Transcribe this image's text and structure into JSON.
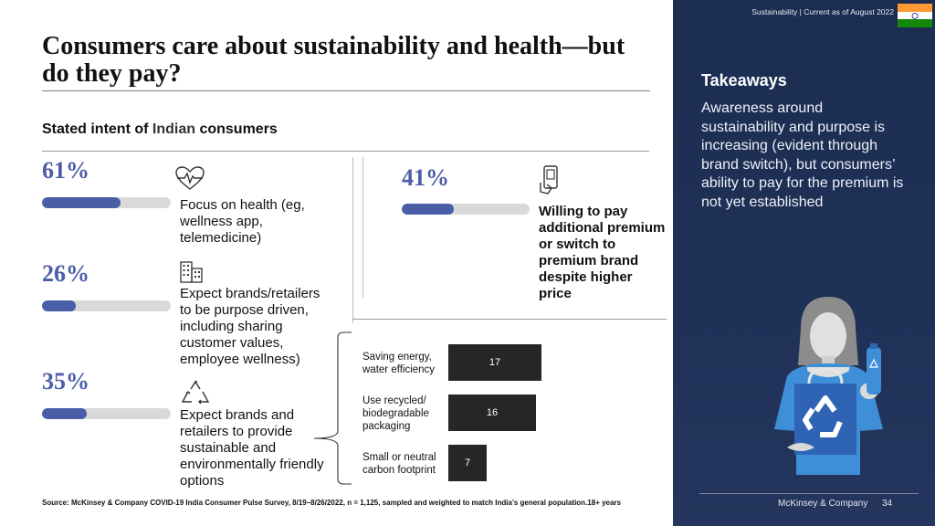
{
  "title": "Consumers care about sustainability and health—but do they pay?",
  "subtitle_prefix": "Stated intent of ",
  "subtitle_highlight": "Indian",
  "subtitle_suffix": " consumers",
  "stats": [
    {
      "percent_label": "61%",
      "value": 61,
      "text": "Focus on health (eg, wellness app, telemedicine)",
      "icon": "heart-pulse-icon"
    },
    {
      "percent_label": "26%",
      "value": 26,
      "text": "Expect brands/retailers to be purpose driven, including sharing customer values, employee wellness)",
      "icon": "buildings-icon"
    },
    {
      "percent_label": "35%",
      "value": 35,
      "text": "Expect brands and retailers to provide sustainable and environmentally friendly options",
      "icon": "recycle-icon"
    },
    {
      "percent_label": "41%",
      "value": 41,
      "text": "Willing to pay additional premium or switch to premium brand despite higher price",
      "icon": "phone-payment-icon"
    }
  ],
  "chart_data": {
    "type": "bar",
    "orientation": "horizontal",
    "categories": [
      "Saving energy, water efficiency",
      "Use recycled/ biodegradable packaging",
      "Small or neutral carbon footprint"
    ],
    "values": [
      17,
      16,
      7
    ],
    "xlim": [
      0,
      17
    ]
  },
  "source": "Source: McKinsey & Company COVID-19 India Consumer Pulse Survey, 8/19–8/26/2022, n = 1,125, sampled and weighted to match India’s general population.18+ years",
  "panel": {
    "meta": "Sustainability | Current as of August 2022",
    "takeaways_title": "Takeaways",
    "takeaways_body": "Awareness around sustainability and purpose is increasing (evident through brand switch), but consumers’ ability to pay for the premium is not yet established",
    "brand": "McKinsey & Company",
    "page_number": "34",
    "flag_colors": [
      "#ff9933",
      "#ffffff",
      "#138808"
    ]
  },
  "colors": {
    "accent": "#4a5ea8",
    "panel": "#1f3157",
    "bar": "#262626"
  }
}
